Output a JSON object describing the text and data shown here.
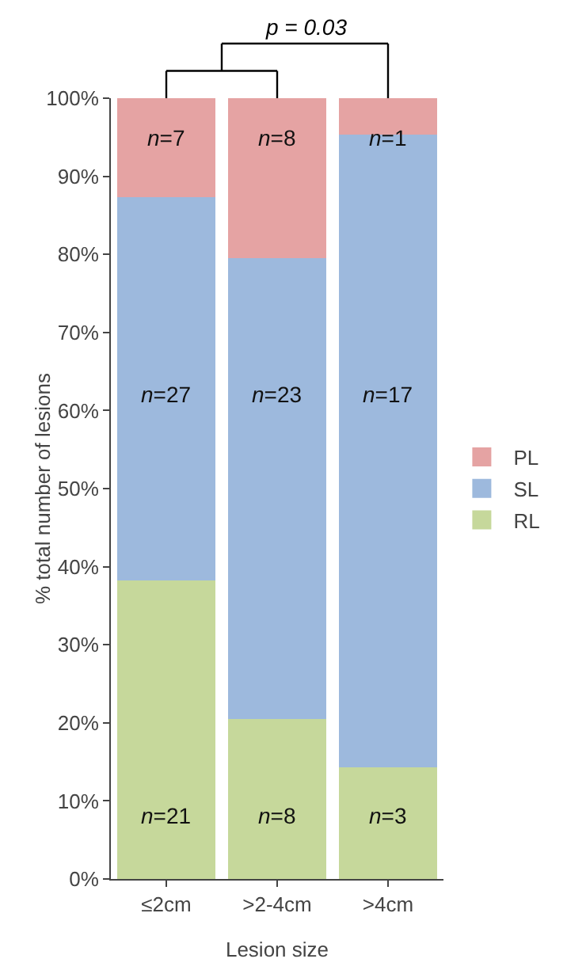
{
  "chart_data": {
    "type": "bar",
    "stacked": true,
    "xlabel": "Lesion size",
    "ylabel": "% total number of lesions",
    "categories": [
      "≤2cm",
      ">2-4cm",
      ">4cm"
    ],
    "series": [
      {
        "name": "RL",
        "color": "#c6d89b",
        "values": [
          38.2,
          20.5,
          14.3
        ]
      },
      {
        "name": "SL",
        "color": "#9db9dd",
        "values": [
          49.1,
          59.0,
          81.0
        ]
      },
      {
        "name": "PL",
        "color": "#e5a3a3",
        "values": [
          12.7,
          20.5,
          4.8
        ]
      }
    ],
    "ylim": [
      0,
      100
    ],
    "yticks": [
      {
        "value": 0,
        "label": "0%"
      },
      {
        "value": 10,
        "label": "10%"
      },
      {
        "value": 20,
        "label": "20%"
      },
      {
        "value": 30,
        "label": "30%"
      },
      {
        "value": 40,
        "label": "40%"
      },
      {
        "value": 50,
        "label": "50%"
      },
      {
        "value": 60,
        "label": "60%"
      },
      {
        "value": 70,
        "label": "70%"
      },
      {
        "value": 80,
        "label": "80%"
      },
      {
        "value": 90,
        "label": "90%"
      },
      {
        "value": 100,
        "label": "100%"
      }
    ],
    "grid": false,
    "legend": "right",
    "annotations": [
      "p = 0.03",
      "n=21",
      "n=8",
      "n=3",
      "n=27",
      "n=23",
      "n=17",
      "n=7",
      "n=8",
      "n=1"
    ]
  }
}
